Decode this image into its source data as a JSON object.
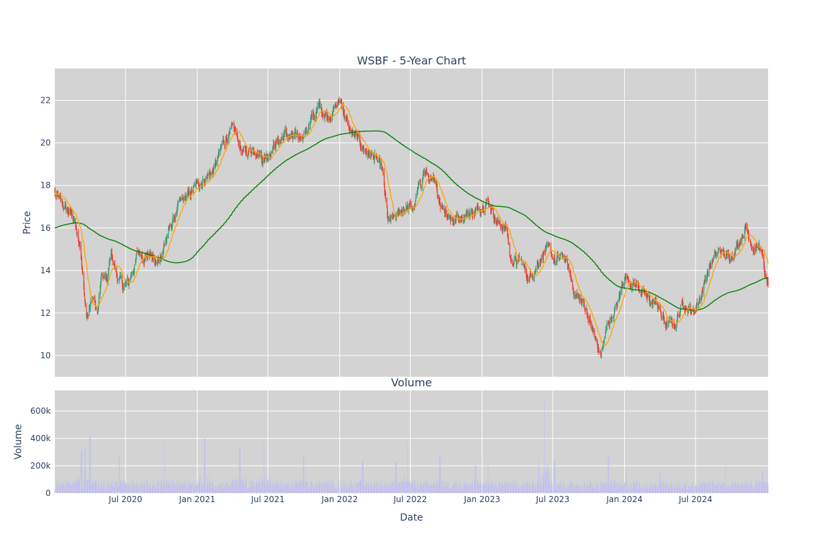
{
  "chart_data": {
    "type": "candlestick",
    "title": "WSBF - 5-Year Chart",
    "price_panel": {
      "ylabel": "Price",
      "ylim": [
        9,
        23.5
      ],
      "y_ticks": [
        10,
        12,
        14,
        16,
        18,
        20,
        22
      ],
      "colors": {
        "up": "#3d9970",
        "down": "#ef3b2c",
        "ma_short": "#ffa500",
        "ma_long": "#008000",
        "bg": "#d3d3d3",
        "grid": "#ffffff"
      },
      "anchors": [
        [
          "2020-01-02",
          17.6
        ],
        [
          "2020-02-01",
          16.8
        ],
        [
          "2020-02-20",
          16.5
        ],
        [
          "2020-03-10",
          14.5
        ],
        [
          "2020-03-23",
          11.8
        ],
        [
          "2020-04-05",
          13.0
        ],
        [
          "2020-04-20",
          12.0
        ],
        [
          "2020-05-01",
          13.8
        ],
        [
          "2020-05-15",
          13.4
        ],
        [
          "2020-05-25",
          14.8
        ],
        [
          "2020-06-10",
          13.7
        ],
        [
          "2020-06-25",
          13.2
        ],
        [
          "2020-07-10",
          13.4
        ],
        [
          "2020-08-01",
          14.8
        ],
        [
          "2020-09-01",
          14.8
        ],
        [
          "2020-09-20",
          14.2
        ],
        [
          "2020-10-15",
          15.6
        ],
        [
          "2020-11-15",
          17.0
        ],
        [
          "2020-12-15",
          17.6
        ],
        [
          "2021-01-10",
          18.2
        ],
        [
          "2021-02-15",
          18.8
        ],
        [
          "2021-03-15",
          20.3
        ],
        [
          "2021-04-05",
          20.5
        ],
        [
          "2021-05-01",
          19.5
        ],
        [
          "2021-06-01",
          19.8
        ],
        [
          "2021-06-20",
          19.3
        ],
        [
          "2021-07-15",
          19.9
        ],
        [
          "2021-08-15",
          20.4
        ],
        [
          "2021-09-10",
          20.1
        ],
        [
          "2021-10-10",
          20.7
        ],
        [
          "2021-11-10",
          21.7
        ],
        [
          "2021-12-01",
          21.3
        ],
        [
          "2022-01-05",
          22.0
        ],
        [
          "2022-01-25",
          20.6
        ],
        [
          "2022-02-15",
          20.1
        ],
        [
          "2022-03-10",
          19.6
        ],
        [
          "2022-04-01",
          19.3
        ],
        [
          "2022-04-20",
          18.6
        ],
        [
          "2022-05-05",
          16.2
        ],
        [
          "2022-05-25",
          16.4
        ],
        [
          "2022-06-15",
          17.0
        ],
        [
          "2022-07-10",
          16.9
        ],
        [
          "2022-08-05",
          18.7
        ],
        [
          "2022-08-25",
          18.1
        ],
        [
          "2022-09-20",
          17.1
        ],
        [
          "2022-10-20",
          16.4
        ],
        [
          "2022-11-20",
          16.7
        ],
        [
          "2022-12-20",
          16.8
        ],
        [
          "2023-01-10",
          17.4
        ],
        [
          "2023-01-25",
          17.0
        ],
        [
          "2023-02-10",
          16.2
        ],
        [
          "2023-03-05",
          16.0
        ],
        [
          "2023-03-15",
          14.5
        ],
        [
          "2023-04-10",
          14.4
        ],
        [
          "2023-05-01",
          13.6
        ],
        [
          "2023-05-20",
          14.3
        ],
        [
          "2023-06-10",
          15.0
        ],
        [
          "2023-07-10",
          14.4
        ],
        [
          "2023-08-01",
          14.6
        ],
        [
          "2023-08-25",
          13.0
        ],
        [
          "2023-09-25",
          12.2
        ],
        [
          "2023-10-20",
          10.6
        ],
        [
          "2023-11-01",
          10.0
        ],
        [
          "2023-11-20",
          11.5
        ],
        [
          "2023-12-15",
          12.4
        ],
        [
          "2024-01-01",
          13.8
        ],
        [
          "2024-01-20",
          13.5
        ],
        [
          "2024-02-10",
          13.2
        ],
        [
          "2024-02-25",
          12.6
        ],
        [
          "2024-03-25",
          12.4
        ],
        [
          "2024-04-15",
          11.4
        ],
        [
          "2024-05-10",
          11.5
        ],
        [
          "2024-06-01",
          12.6
        ],
        [
          "2024-06-25",
          12.0
        ],
        [
          "2024-07-15",
          12.9
        ],
        [
          "2024-08-05",
          14.2
        ],
        [
          "2024-09-01",
          14.9
        ],
        [
          "2024-09-20",
          14.6
        ],
        [
          "2024-10-10",
          15.0
        ],
        [
          "2024-11-06",
          16.1
        ],
        [
          "2024-11-25",
          15.2
        ],
        [
          "2024-12-15",
          15.1
        ],
        [
          "2024-12-28",
          13.4
        ],
        [
          "2025-01-03",
          13.3
        ]
      ]
    },
    "volume_panel": {
      "title": "Volume",
      "ylabel": "Volume",
      "ylim": [
        0,
        750000
      ],
      "y_ticks": [
        0,
        200000,
        400000,
        600000
      ],
      "y_tick_labels": [
        "0",
        "200k",
        "400k",
        "600k"
      ],
      "bar_color": "#c0c0f0",
      "bg": "#d3d3d3",
      "base_level": 75000,
      "spikes": [
        [
          "2020-03-10",
          310000
        ],
        [
          "2020-03-20",
          330000
        ],
        [
          "2020-04-01",
          410000
        ],
        [
          "2020-06-15",
          270000
        ],
        [
          "2020-10-10",
          350000
        ],
        [
          "2021-01-20",
          400000
        ],
        [
          "2021-04-20",
          330000
        ],
        [
          "2021-06-20",
          380000
        ],
        [
          "2021-10-01",
          270000
        ],
        [
          "2022-03-01",
          230000
        ],
        [
          "2022-05-25",
          230000
        ],
        [
          "2022-06-25",
          360000
        ],
        [
          "2022-09-15",
          270000
        ],
        [
          "2022-12-15",
          200000
        ],
        [
          "2023-01-15",
          230000
        ],
        [
          "2023-06-10",
          700000
        ],
        [
          "2023-07-05",
          240000
        ],
        [
          "2023-11-20",
          270000
        ],
        [
          "2024-01-05",
          150000
        ],
        [
          "2024-04-01",
          150000
        ],
        [
          "2024-09-15",
          200000
        ],
        [
          "2024-12-20",
          170000
        ]
      ]
    },
    "x_axis": {
      "xlabel": "Date",
      "range": [
        "2020-01-02",
        "2025-01-03"
      ],
      "ticks": [
        "2020-07-01",
        "2021-01-01",
        "2021-07-01",
        "2022-01-01",
        "2022-07-01",
        "2023-01-01",
        "2023-07-01",
        "2024-01-01",
        "2024-07-01"
      ],
      "tick_labels": [
        "Jul 2020",
        "Jan 2021",
        "Jul 2021",
        "Jan 2022",
        "Jul 2022",
        "Jan 2023",
        "Jul 2023",
        "Jan 2024",
        "Jul 2024"
      ]
    },
    "grid": true,
    "legend": "none"
  }
}
